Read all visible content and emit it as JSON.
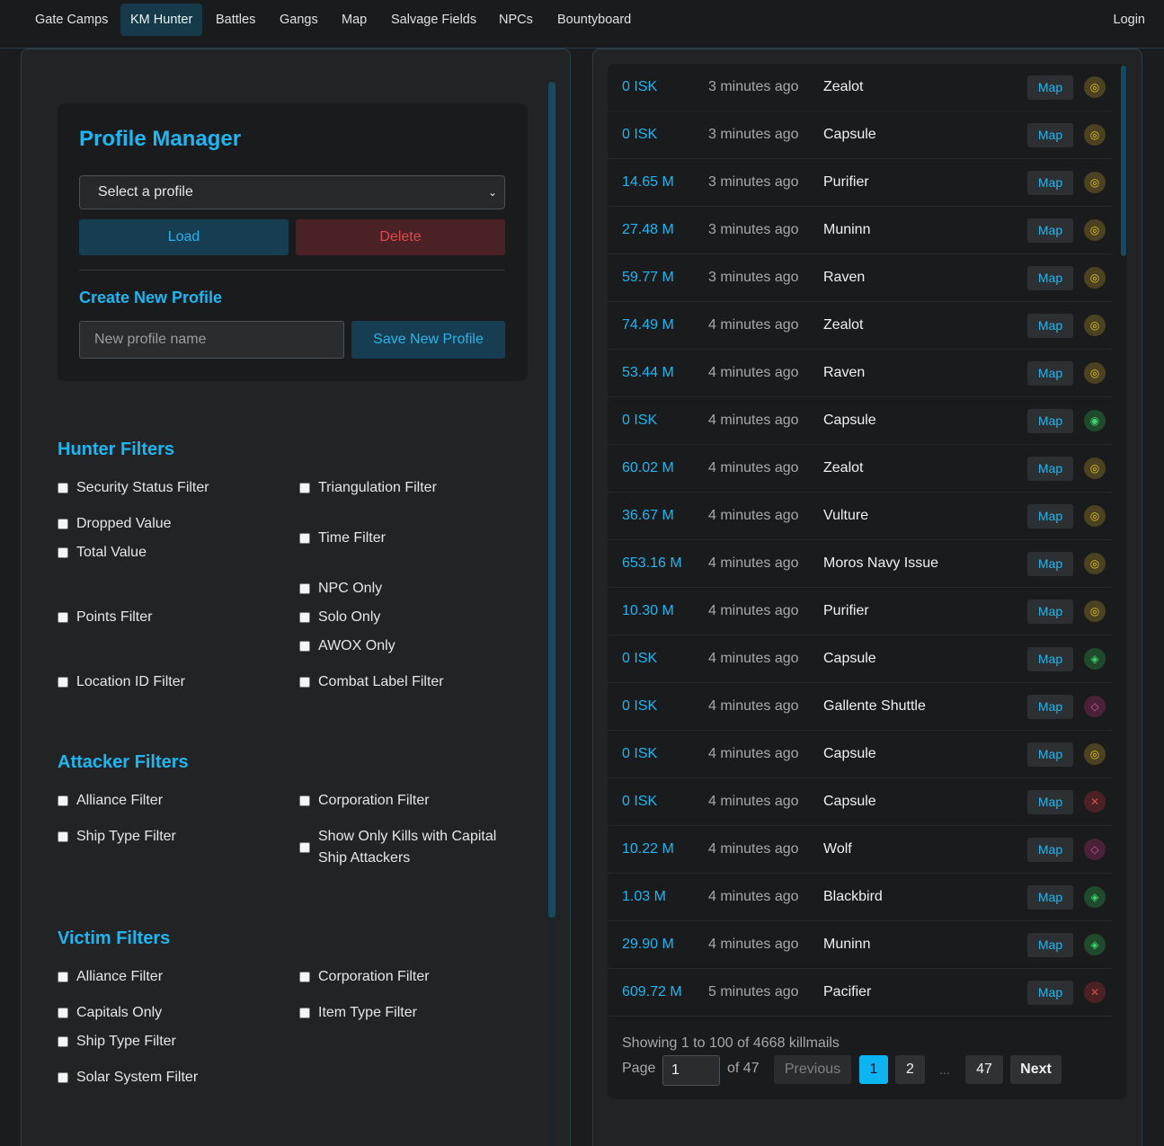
{
  "nav": {
    "items": [
      "Gate Camps",
      "KM Hunter",
      "Battles",
      "Gangs",
      "Map",
      "Salvage Fields",
      "NPCs",
      "Bountyboard"
    ],
    "active": "KM Hunter",
    "login": "Login"
  },
  "profile": {
    "title": "Profile Manager",
    "select_value": "Select a profile",
    "load_label": "Load",
    "delete_label": "Delete",
    "create_title": "Create New Profile",
    "input_placeholder": "New profile name",
    "save_label": "Save New Profile"
  },
  "hunter": {
    "title": "Hunter Filters",
    "security": "Security Status Filter",
    "triangulation": "Triangulation Filter",
    "dropped": "Dropped Value",
    "total": "Total Value",
    "time": "Time Filter",
    "npc": "NPC Only",
    "points": "Points Filter",
    "solo": "Solo Only",
    "awox": "AWOX Only",
    "location": "Location ID Filter",
    "combat": "Combat Label Filter"
  },
  "attacker": {
    "title": "Attacker Filters",
    "alliance": "Alliance Filter",
    "corporation": "Corporation Filter",
    "shiptype": "Ship Type Filter",
    "capital": "Show Only Kills with Capital Ship Attackers"
  },
  "victim": {
    "title": "Victim Filters",
    "alliance": "Alliance Filter",
    "corporation": "Corporation Filter",
    "capitals": "Capitals Only",
    "itemtype": "Item Type Filter",
    "shiptype": "Ship Type Filter",
    "solar": "Solar System Filter"
  },
  "killmails": {
    "map_label": "Map",
    "rows": [
      {
        "value": "0 ISK",
        "time": "3 minutes ago",
        "ship": "Zealot",
        "icon": "yellow"
      },
      {
        "value": "0 ISK",
        "time": "3 minutes ago",
        "ship": "Capsule",
        "icon": "yellow"
      },
      {
        "value": "14.65 M",
        "time": "3 minutes ago",
        "ship": "Purifier",
        "icon": "yellow"
      },
      {
        "value": "27.48 M",
        "time": "3 minutes ago",
        "ship": "Muninn",
        "icon": "yellow"
      },
      {
        "value": "59.77 M",
        "time": "3 minutes ago",
        "ship": "Raven",
        "icon": "yellow"
      },
      {
        "value": "74.49 M",
        "time": "4 minutes ago",
        "ship": "Zealot",
        "icon": "yellow"
      },
      {
        "value": "53.44 M",
        "time": "4 minutes ago",
        "ship": "Raven",
        "icon": "yellow"
      },
      {
        "value": "0 ISK",
        "time": "4 minutes ago",
        "ship": "Capsule",
        "icon": "green-circle"
      },
      {
        "value": "60.02 M",
        "time": "4 minutes ago",
        "ship": "Zealot",
        "icon": "yellow"
      },
      {
        "value": "36.67 M",
        "time": "4 minutes ago",
        "ship": "Vulture",
        "icon": "yellow"
      },
      {
        "value": "653.16 M",
        "time": "4 minutes ago",
        "ship": "Moros Navy Issue",
        "icon": "yellow"
      },
      {
        "value": "10.30 M",
        "time": "4 minutes ago",
        "ship": "Purifier",
        "icon": "yellow"
      },
      {
        "value": "0 ISK",
        "time": "4 minutes ago",
        "ship": "Capsule",
        "icon": "green-diamond"
      },
      {
        "value": "0 ISK",
        "time": "4 minutes ago",
        "ship": "Gallente Shuttle",
        "icon": "pink"
      },
      {
        "value": "0 ISK",
        "time": "4 minutes ago",
        "ship": "Capsule",
        "icon": "yellow"
      },
      {
        "value": "0 ISK",
        "time": "4 minutes ago",
        "ship": "Capsule",
        "icon": "red"
      },
      {
        "value": "10.22 M",
        "time": "4 minutes ago",
        "ship": "Wolf",
        "icon": "pink"
      },
      {
        "value": "1.03 M",
        "time": "4 minutes ago",
        "ship": "Blackbird",
        "icon": "green-diamond"
      },
      {
        "value": "29.90 M",
        "time": "4 minutes ago",
        "ship": "Muninn",
        "icon": "green-diamond"
      },
      {
        "value": "609.72 M",
        "time": "5 minutes ago",
        "ship": "Pacifier",
        "icon": "red"
      }
    ],
    "showing": "Showing 1 to 100 of 4668 killmails",
    "page_label": "Page",
    "page_value": "1",
    "page_of": "of 47",
    "prev": "Previous",
    "pages": [
      "1",
      "2",
      "...",
      "47"
    ],
    "next": "Next"
  },
  "colors": {
    "accent": "#1eb6f0",
    "active_page": "#0db4f2",
    "delete": "#e2494b"
  }
}
